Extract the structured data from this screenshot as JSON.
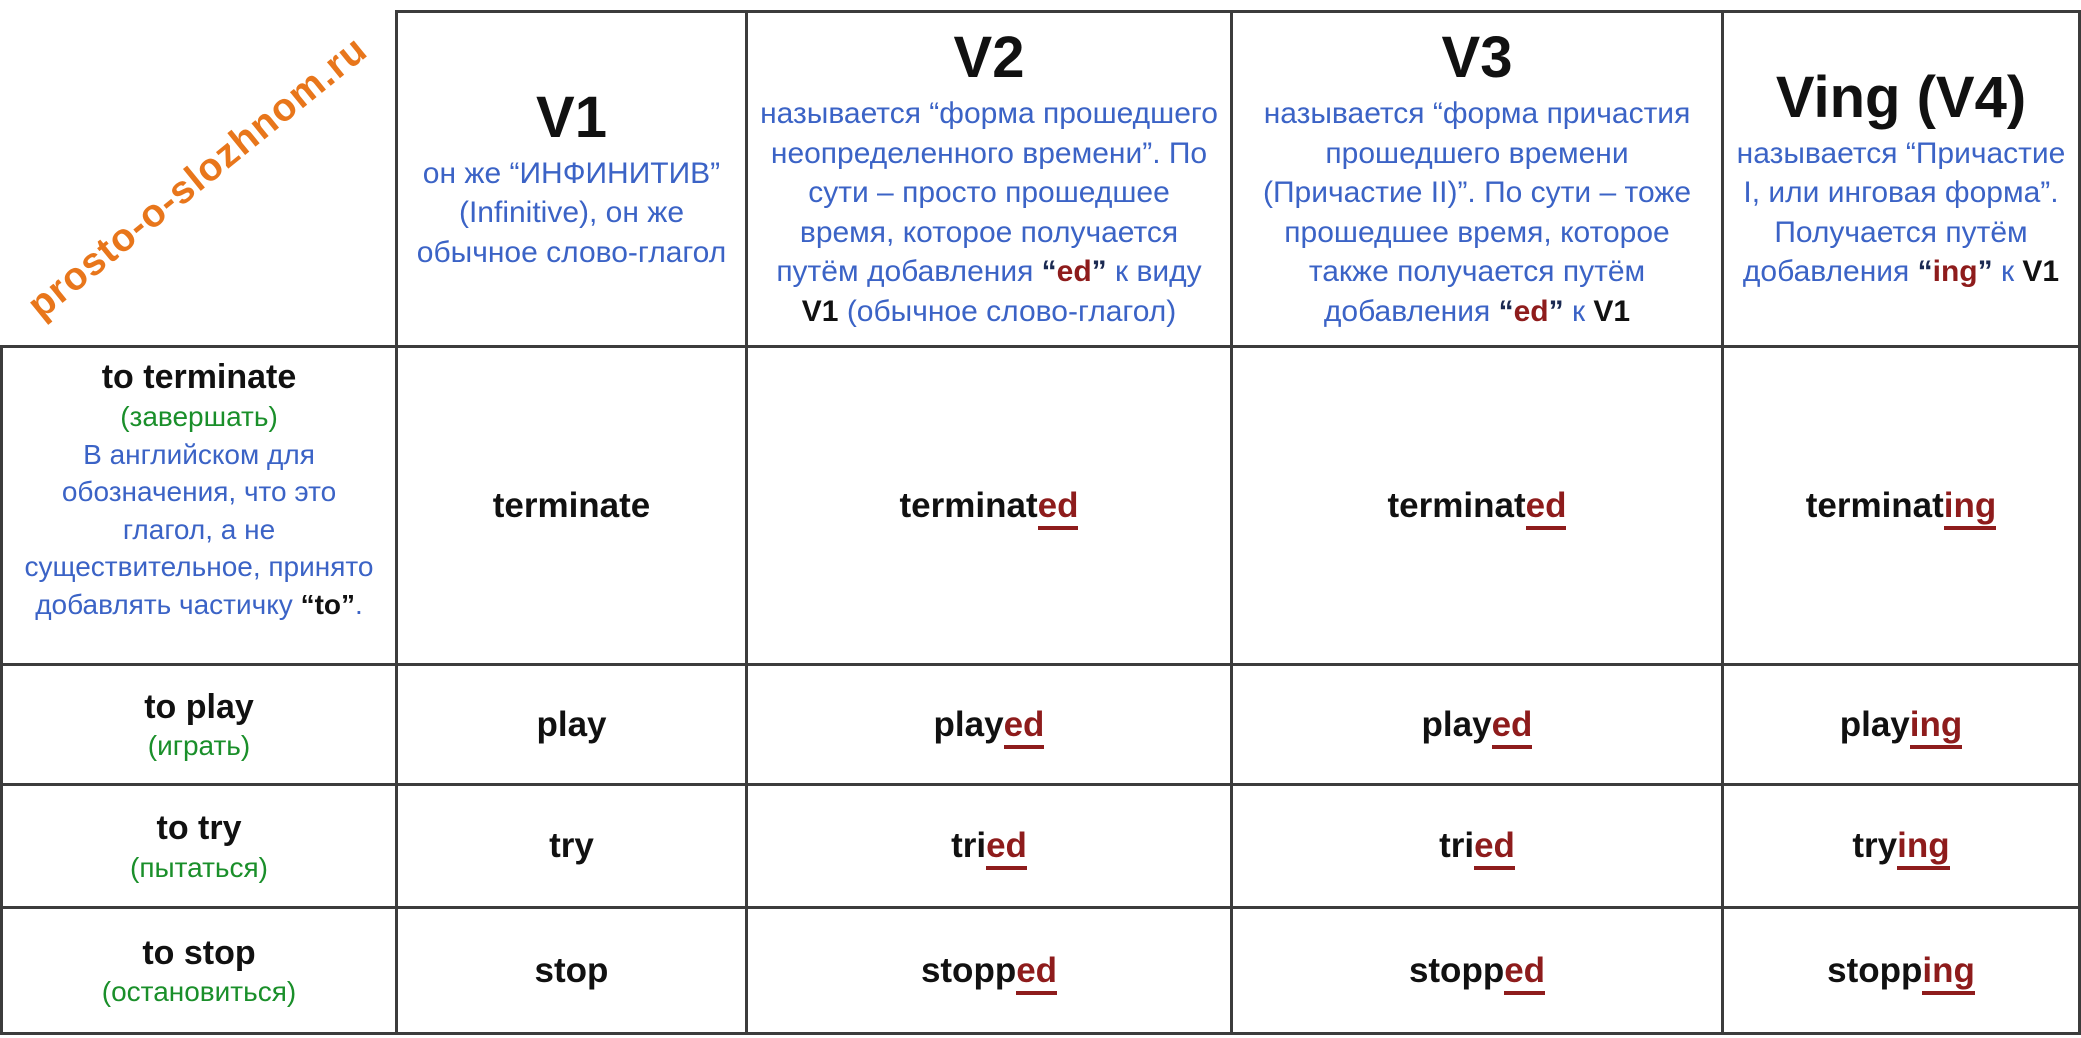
{
  "watermark": "prosto-o-slozhnom.ru",
  "colors": {
    "blue_text": "#3b63c6",
    "red_suffix": "#8e1c1c",
    "green_translation": "#1a8f2a",
    "orange_watermark": "#e8761b",
    "border": "#3c3c3c"
  },
  "columns": [
    {
      "id": "v1",
      "title": "V1",
      "desc_segments": [
        {
          "t": "он же “ИНФИНИТИВ” (Infinitive), он же обычное слово-глагол",
          "c": "blue"
        }
      ]
    },
    {
      "id": "v2",
      "title": "V2",
      "desc_segments": [
        {
          "t": "называется “форма прошедшего неопределенного времени”. По сути – просто прошедшее время, которое получается путём добавления ",
          "c": "blue"
        },
        {
          "t": "“",
          "c": "quote"
        },
        {
          "t": "ed",
          "c": "red"
        },
        {
          "t": "”",
          "c": "quote"
        },
        {
          "t": " к виду ",
          "c": "blue"
        },
        {
          "t": "V1",
          "c": "black"
        },
        {
          "t": " (обычное слово-глагол)",
          "c": "blue"
        }
      ]
    },
    {
      "id": "v3",
      "title": "V3",
      "desc_segments": [
        {
          "t": "называется “форма причастия прошедшего времени (Причастие II)”. По сути – тоже прошедшее время, которое также получается путём добавления ",
          "c": "blue"
        },
        {
          "t": "“",
          "c": "quote"
        },
        {
          "t": "ed",
          "c": "red"
        },
        {
          "t": "”",
          "c": "quote"
        },
        {
          "t": " к ",
          "c": "blue"
        },
        {
          "t": "V1",
          "c": "black"
        }
      ]
    },
    {
      "id": "v4",
      "title": "Ving (V4)",
      "desc_segments": [
        {
          "t": "называется “Причастие I, или инговая форма”. Получается путём добавления ",
          "c": "blue"
        },
        {
          "t": "“",
          "c": "quote"
        },
        {
          "t": "ing",
          "c": "red"
        },
        {
          "t": "”",
          "c": "quote"
        },
        {
          "t": " к ",
          "c": "blue"
        },
        {
          "t": "V1",
          "c": "black"
        }
      ]
    }
  ],
  "rows": [
    {
      "verb": "to terminate",
      "translation": "(завершать)",
      "note_segments": [
        {
          "t": "В английском для обозначения, что это глагол, а не существительное, принято добавлять частичку ",
          "c": "blue"
        },
        {
          "t": "“to”",
          "c": "black"
        },
        {
          "t": ".",
          "c": "blue"
        }
      ],
      "forms": {
        "v1": {
          "base": "terminate",
          "suffix": ""
        },
        "v2": {
          "base": "terminat",
          "suffix": "ed"
        },
        "v3": {
          "base": "terminat",
          "suffix": "ed"
        },
        "v4": {
          "base": "terminat",
          "suffix": "ing"
        }
      }
    },
    {
      "verb": "to play",
      "translation": "(играть)",
      "forms": {
        "v1": {
          "base": "play",
          "suffix": ""
        },
        "v2": {
          "base": "play",
          "suffix": "ed"
        },
        "v3": {
          "base": "play",
          "suffix": "ed"
        },
        "v4": {
          "base": "play",
          "suffix": "ing"
        }
      }
    },
    {
      "verb": "to try",
      "translation": "(пытаться)",
      "forms": {
        "v1": {
          "base": "try",
          "suffix": ""
        },
        "v2": {
          "base": "tri",
          "suffix": "ed"
        },
        "v3": {
          "base": "tri",
          "suffix": "ed"
        },
        "v4": {
          "base": "try",
          "suffix": "ing"
        }
      }
    },
    {
      "verb": "to stop",
      "translation": "(остановиться)",
      "forms": {
        "v1": {
          "base": "stop",
          "suffix": ""
        },
        "v2": {
          "base": "stopp",
          "suffix": "ed"
        },
        "v3": {
          "base": "stopp",
          "suffix": "ed"
        },
        "v4": {
          "base": "stopp",
          "suffix": "ing"
        }
      }
    }
  ]
}
